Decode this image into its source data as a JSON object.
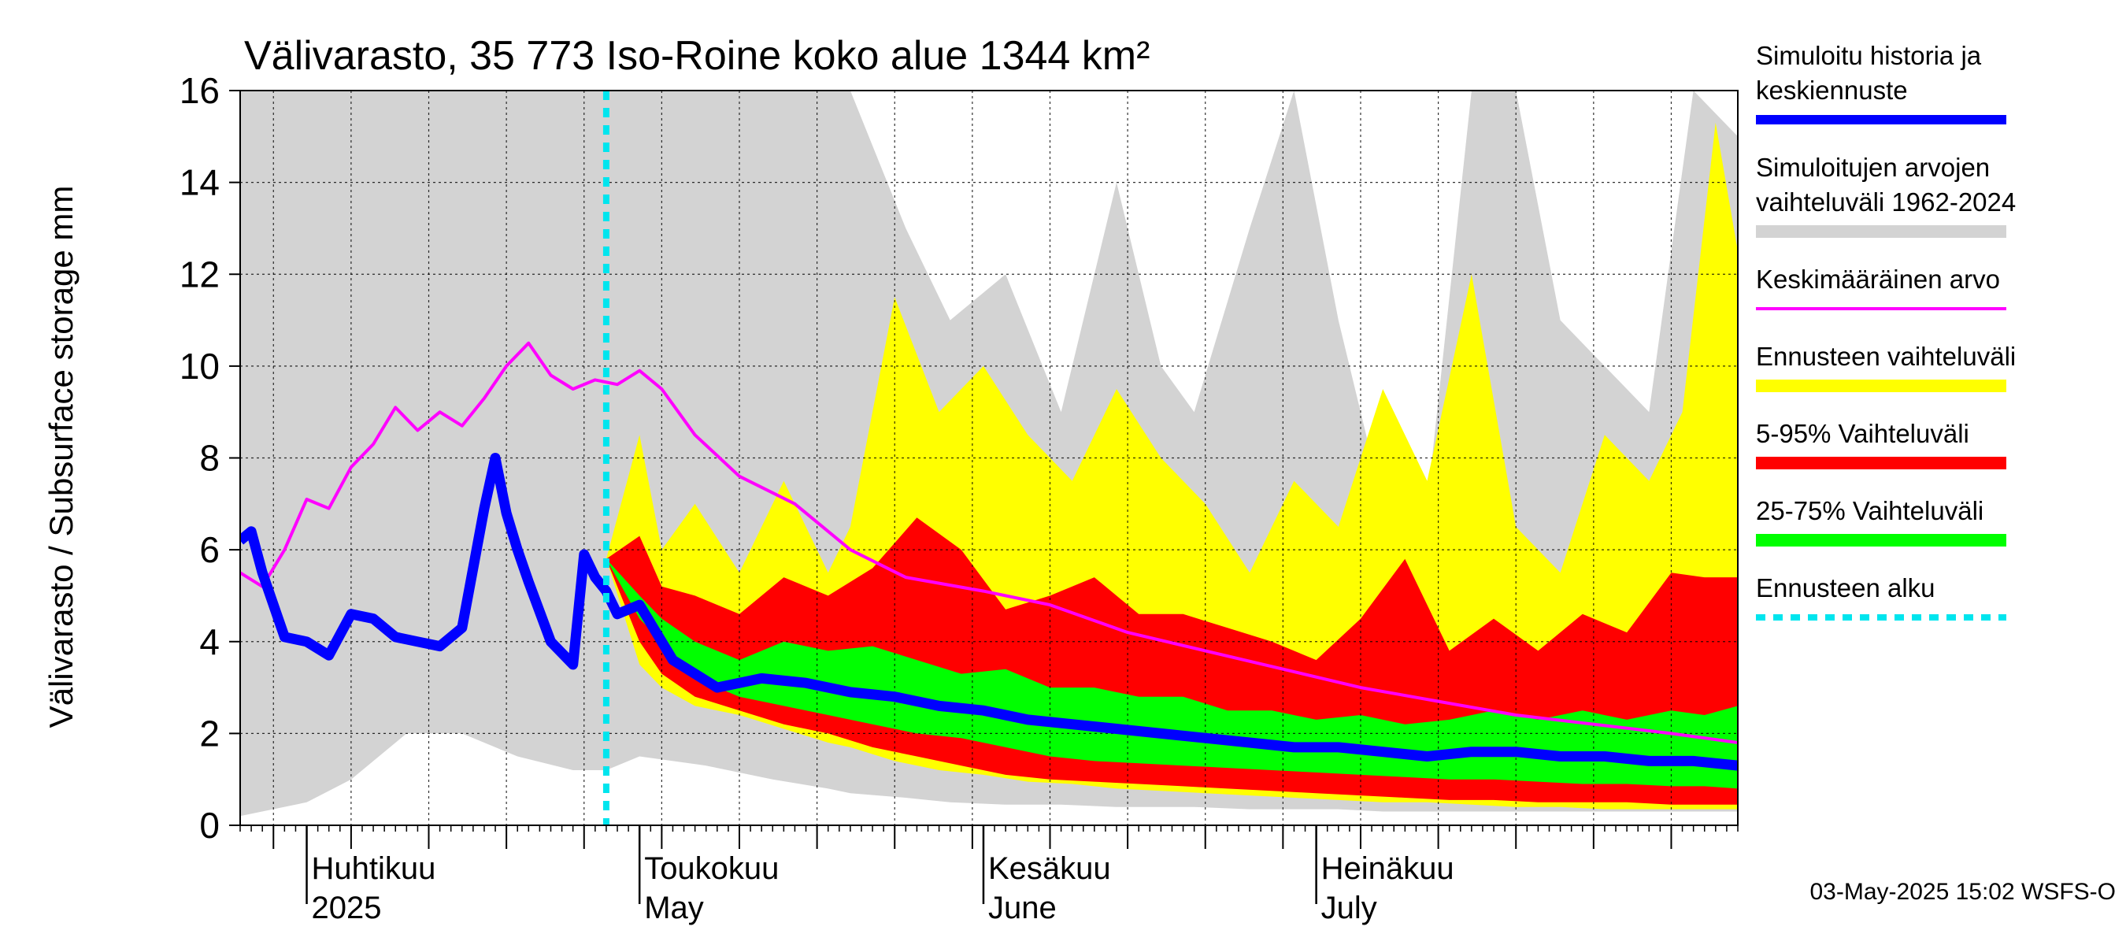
{
  "chart_data": {
    "type": "area",
    "title": "Välivarasto, 35 773 Iso-Roine koko alue 1344 km²",
    "ylabel": "Välivarasto / Subsurface storage  mm",
    "ylim": [
      0,
      16
    ],
    "yticks": [
      0,
      2,
      4,
      6,
      8,
      10,
      12,
      14,
      16
    ],
    "x_start": "2025-03-26",
    "x_end": "2025-08-08",
    "month_labels": [
      {
        "date": "2025-04-01",
        "line1": "Huhtikuu",
        "line2": "2025"
      },
      {
        "date": "2025-05-01",
        "line1": "Toukokuu",
        "line2": "May"
      },
      {
        "date": "2025-06-01",
        "line1": "Kesäkuu",
        "line2": "June"
      },
      {
        "date": "2025-07-01",
        "line1": "Heinäkuu",
        "line2": "July"
      }
    ],
    "forecast_start": "2025-04-28",
    "timestamp": "03-May-2025 15:02 WSFS-O",
    "grid": true,
    "legend_position": "right",
    "legend": [
      {
        "label_lines": [
          "Simuloitu historia ja",
          "keskiennuste"
        ],
        "color": "#0000ff",
        "style": "thick"
      },
      {
        "label_lines": [
          "Simuloitujen arvojen",
          "vaihteluväli 1962-2024"
        ],
        "color": "#d3d3d3",
        "style": "band"
      },
      {
        "label_lines": [
          "Keskimääräinen arvo"
        ],
        "color": "#ff00ff",
        "style": "thin"
      },
      {
        "label_lines": [
          "Ennusteen vaihteluväli"
        ],
        "color": "#ffff00",
        "style": "band"
      },
      {
        "label_lines": [
          "5-95% Vaihteluväli"
        ],
        "color": "#ff0000",
        "style": "band"
      },
      {
        "label_lines": [
          "25-75% Vaihteluväli"
        ],
        "color": "#00ff00",
        "style": "band"
      },
      {
        "label_lines": [
          "Ennusteen alku"
        ],
        "color": "#00e5ee",
        "style": "dotted"
      }
    ],
    "series": [
      {
        "name": "Simuloitujen arvojen vaihteluväli 1962-2024",
        "kind": "band",
        "color": "#d3d3d3",
        "x": [
          "2025-03-26",
          "2025-04-01",
          "2025-04-05",
          "2025-04-10",
          "2025-04-15",
          "2025-04-20",
          "2025-04-25",
          "2025-04-28",
          "2025-05-01",
          "2025-05-07",
          "2025-05-13",
          "2025-05-18",
          "2025-05-20",
          "2025-05-25",
          "2025-05-29",
          "2025-06-03",
          "2025-06-08",
          "2025-06-13",
          "2025-06-17",
          "2025-06-20",
          "2025-06-25",
          "2025-06-29",
          "2025-07-03",
          "2025-07-07",
          "2025-07-11",
          "2025-07-15",
          "2025-07-19",
          "2025-07-23",
          "2025-07-27",
          "2025-07-31",
          "2025-08-04",
          "2025-08-08"
        ],
        "low": [
          0.2,
          0.5,
          1.0,
          2.0,
          2.0,
          1.5,
          1.2,
          1.2,
          1.5,
          1.3,
          1.0,
          0.8,
          0.7,
          0.6,
          0.5,
          0.45,
          0.45,
          0.4,
          0.4,
          0.4,
          0.35,
          0.35,
          0.35,
          0.3,
          0.3,
          0.3,
          0.3,
          0.3,
          0.3,
          0.3,
          0.3,
          0.3
        ],
        "high": [
          16,
          16,
          16,
          16,
          16,
          16,
          16,
          16,
          16,
          16,
          16,
          16,
          16,
          13,
          11,
          12,
          9,
          14,
          10,
          9,
          13,
          16,
          11,
          7,
          7,
          16,
          16,
          11,
          10,
          9,
          16,
          15
        ]
      },
      {
        "name": "Ennusteen vaihteluväli",
        "kind": "band",
        "color": "#ffff00",
        "x": [
          "2025-04-28",
          "2025-05-01",
          "2025-05-03",
          "2025-05-06",
          "2025-05-10",
          "2025-05-14",
          "2025-05-18",
          "2025-05-20",
          "2025-05-24",
          "2025-05-28",
          "2025-06-01",
          "2025-06-05",
          "2025-06-09",
          "2025-06-13",
          "2025-06-17",
          "2025-06-21",
          "2025-06-25",
          "2025-06-29",
          "2025-07-03",
          "2025-07-07",
          "2025-07-11",
          "2025-07-15",
          "2025-07-19",
          "2025-07-23",
          "2025-07-27",
          "2025-07-31",
          "2025-08-03",
          "2025-08-06",
          "2025-08-08"
        ],
        "low": [
          5.8,
          3.5,
          3.0,
          2.6,
          2.4,
          2.1,
          1.8,
          1.7,
          1.4,
          1.2,
          1.1,
          0.95,
          0.9,
          0.8,
          0.75,
          0.7,
          0.65,
          0.6,
          0.55,
          0.5,
          0.5,
          0.45,
          0.4,
          0.4,
          0.35,
          0.35,
          0.35,
          0.35,
          0.35
        ],
        "high": [
          5.8,
          8.5,
          6.0,
          7.0,
          5.5,
          7.5,
          5.5,
          6.5,
          11.5,
          9.0,
          10.0,
          8.5,
          7.5,
          9.5,
          8.0,
          7.0,
          5.5,
          7.5,
          6.5,
          9.5,
          7.5,
          12.0,
          6.5,
          5.5,
          8.5,
          7.5,
          9.0,
          15.3,
          12.5
        ]
      },
      {
        "name": "5-95% Vaihteluväli",
        "kind": "band",
        "color": "#ff0000",
        "x": [
          "2025-04-28",
          "2025-05-01",
          "2025-05-03",
          "2025-05-06",
          "2025-05-10",
          "2025-05-14",
          "2025-05-18",
          "2025-05-22",
          "2025-05-26",
          "2025-05-30",
          "2025-06-03",
          "2025-06-07",
          "2025-06-11",
          "2025-06-15",
          "2025-06-19",
          "2025-06-23",
          "2025-06-27",
          "2025-07-01",
          "2025-07-05",
          "2025-07-09",
          "2025-07-13",
          "2025-07-17",
          "2025-07-21",
          "2025-07-25",
          "2025-07-29",
          "2025-08-02",
          "2025-08-05",
          "2025-08-08"
        ],
        "low": [
          5.8,
          4.0,
          3.3,
          2.8,
          2.5,
          2.2,
          2.0,
          1.7,
          1.5,
          1.3,
          1.1,
          1.0,
          0.95,
          0.9,
          0.85,
          0.8,
          0.75,
          0.7,
          0.65,
          0.6,
          0.55,
          0.55,
          0.5,
          0.5,
          0.5,
          0.45,
          0.45,
          0.45
        ],
        "high": [
          5.8,
          6.3,
          5.2,
          5.0,
          4.6,
          5.4,
          5.0,
          5.6,
          6.7,
          6.0,
          4.7,
          5.0,
          5.4,
          4.6,
          4.6,
          4.3,
          4.0,
          3.6,
          4.5,
          5.8,
          3.8,
          4.5,
          3.8,
          4.6,
          4.2,
          5.5,
          5.4,
          5.4
        ]
      },
      {
        "name": "25-75% Vaihteluväli",
        "kind": "band",
        "color": "#00ff00",
        "x": [
          "2025-04-28",
          "2025-05-01",
          "2025-05-03",
          "2025-05-06",
          "2025-05-10",
          "2025-05-14",
          "2025-05-18",
          "2025-05-22",
          "2025-05-26",
          "2025-05-30",
          "2025-06-03",
          "2025-06-07",
          "2025-06-11",
          "2025-06-15",
          "2025-06-19",
          "2025-06-23",
          "2025-06-27",
          "2025-07-01",
          "2025-07-05",
          "2025-07-09",
          "2025-07-13",
          "2025-07-17",
          "2025-07-21",
          "2025-07-25",
          "2025-07-29",
          "2025-08-02",
          "2025-08-05",
          "2025-08-08"
        ],
        "low": [
          5.8,
          4.5,
          4.0,
          3.2,
          2.8,
          2.6,
          2.4,
          2.2,
          2.0,
          1.9,
          1.7,
          1.5,
          1.4,
          1.35,
          1.3,
          1.25,
          1.2,
          1.15,
          1.1,
          1.05,
          1.0,
          1.0,
          0.95,
          0.9,
          0.9,
          0.85,
          0.85,
          0.8
        ],
        "high": [
          5.8,
          5.0,
          4.5,
          4.0,
          3.6,
          4.0,
          3.8,
          3.9,
          3.6,
          3.3,
          3.4,
          3.0,
          3.0,
          2.8,
          2.8,
          2.5,
          2.5,
          2.3,
          2.4,
          2.2,
          2.3,
          2.5,
          2.3,
          2.5,
          2.3,
          2.5,
          2.4,
          2.6
        ]
      },
      {
        "name": "Keskimääräinen arvo",
        "kind": "line",
        "color": "#ff00ff",
        "x": [
          "2025-03-26",
          "2025-03-28",
          "2025-03-30",
          "2025-04-01",
          "2025-04-03",
          "2025-04-05",
          "2025-04-07",
          "2025-04-09",
          "2025-04-11",
          "2025-04-13",
          "2025-04-15",
          "2025-04-17",
          "2025-04-19",
          "2025-04-21",
          "2025-04-23",
          "2025-04-25",
          "2025-04-27",
          "2025-04-29",
          "2025-05-01",
          "2025-05-03",
          "2025-05-06",
          "2025-05-10",
          "2025-05-15",
          "2025-05-20",
          "2025-05-25",
          "2025-06-01",
          "2025-06-07",
          "2025-06-14",
          "2025-06-21",
          "2025-06-28",
          "2025-07-05",
          "2025-07-12",
          "2025-07-19",
          "2025-07-26",
          "2025-08-02",
          "2025-08-08"
        ],
        "y": [
          5.5,
          5.2,
          6.0,
          7.1,
          6.9,
          7.8,
          8.3,
          9.1,
          8.6,
          9.0,
          8.7,
          9.3,
          10.0,
          10.5,
          9.8,
          9.5,
          9.7,
          9.6,
          9.9,
          9.5,
          8.5,
          7.6,
          7.0,
          6.0,
          5.4,
          5.1,
          4.8,
          4.2,
          3.8,
          3.4,
          3.0,
          2.7,
          2.4,
          2.2,
          2.0,
          1.8
        ]
      },
      {
        "name": "Simuloitu historia ja keskiennuste",
        "kind": "line",
        "color": "#0000ff",
        "x": [
          "2025-03-26",
          "2025-03-27",
          "2025-03-28",
          "2025-03-30",
          "2025-04-01",
          "2025-04-03",
          "2025-04-05",
          "2025-04-07",
          "2025-04-09",
          "2025-04-11",
          "2025-04-13",
          "2025-04-15",
          "2025-04-17",
          "2025-04-18",
          "2025-04-19",
          "2025-04-20",
          "2025-04-21",
          "2025-04-23",
          "2025-04-25",
          "2025-04-26",
          "2025-04-27",
          "2025-04-28",
          "2025-04-29",
          "2025-05-01",
          "2025-05-04",
          "2025-05-08",
          "2025-05-12",
          "2025-05-16",
          "2025-05-20",
          "2025-05-24",
          "2025-05-28",
          "2025-06-01",
          "2025-06-05",
          "2025-06-09",
          "2025-06-13",
          "2025-06-17",
          "2025-06-21",
          "2025-06-25",
          "2025-06-29",
          "2025-07-03",
          "2025-07-07",
          "2025-07-11",
          "2025-07-15",
          "2025-07-19",
          "2025-07-23",
          "2025-07-27",
          "2025-07-31",
          "2025-08-04",
          "2025-08-08"
        ],
        "y": [
          6.2,
          6.4,
          5.5,
          4.1,
          4.0,
          3.7,
          4.6,
          4.5,
          4.1,
          4.0,
          3.9,
          4.3,
          6.9,
          8.0,
          6.8,
          6.0,
          5.3,
          4.0,
          3.5,
          5.9,
          5.4,
          5.1,
          4.6,
          4.8,
          3.6,
          3.0,
          3.2,
          3.1,
          2.9,
          2.8,
          2.6,
          2.5,
          2.3,
          2.2,
          2.1,
          2.0,
          1.9,
          1.8,
          1.7,
          1.7,
          1.6,
          1.5,
          1.6,
          1.6,
          1.5,
          1.5,
          1.4,
          1.4,
          1.3
        ]
      }
    ]
  }
}
